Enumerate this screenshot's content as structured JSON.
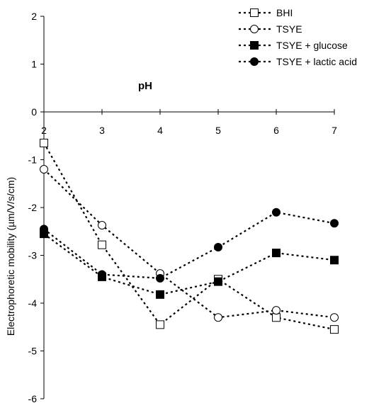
{
  "chart_data": {
    "type": "line",
    "title": "",
    "xlabel": "pH",
    "ylabel": "Electrophoretic mobility (µm/V/s/cm)",
    "x": [
      2,
      3,
      4,
      5,
      6,
      7
    ],
    "xlim": [
      2,
      7
    ],
    "ylim": [
      -6,
      2
    ],
    "x_tick_labels": [
      "2",
      "3",
      "4",
      "5",
      "6",
      "7"
    ],
    "y_tick_labels": [
      "2",
      "1",
      "0",
      "-1",
      "-2",
      "-3",
      "-4",
      "-5",
      "-6"
    ],
    "x_axis_position": "top (at y = 0)",
    "grid": false,
    "legend_position": "top-right",
    "series": [
      {
        "name": "BHI",
        "marker": "open-square",
        "values": [
          -0.65,
          -2.78,
          -4.45,
          -3.5,
          -4.3,
          -4.55
        ]
      },
      {
        "name": "TSYE",
        "marker": "open-circle",
        "values": [
          -1.2,
          -2.37,
          -3.38,
          -4.3,
          -4.15,
          -4.3
        ]
      },
      {
        "name": "TSYE + glucose",
        "marker": "filled-square",
        "values": [
          -2.55,
          -3.45,
          -3.82,
          -3.55,
          -2.95,
          -3.1
        ]
      },
      {
        "name": "TSYE + lactic acid",
        "marker": "filled-circle",
        "values": [
          -2.45,
          -3.4,
          -3.48,
          -2.83,
          -2.1,
          -2.33
        ]
      }
    ]
  }
}
